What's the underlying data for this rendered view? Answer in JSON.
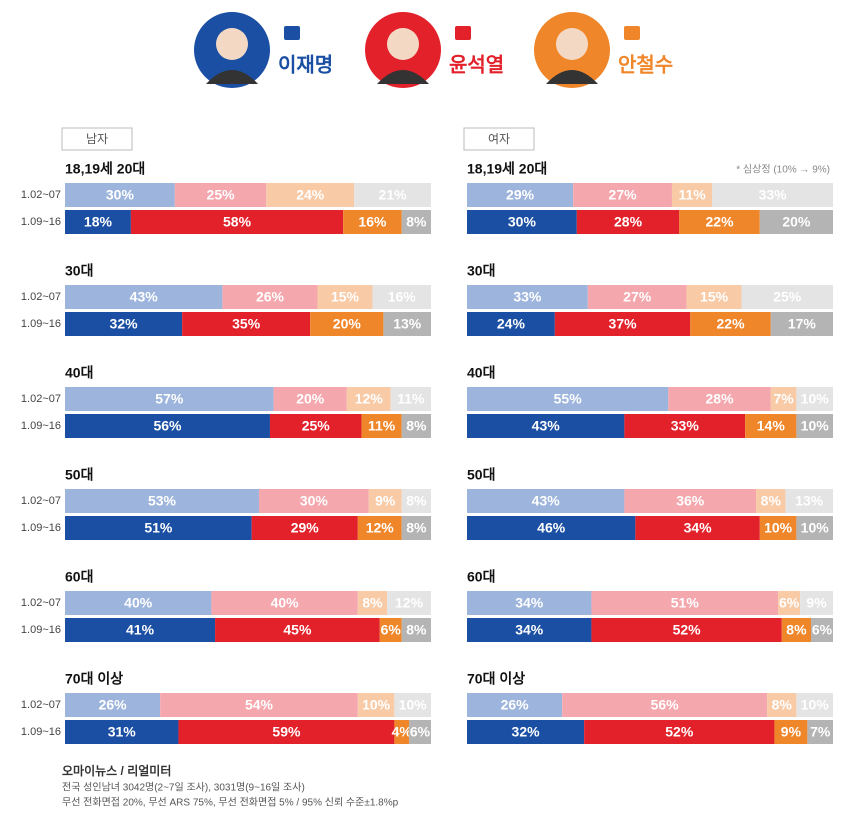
{
  "legend": [
    {
      "name": "이재명",
      "color": "#1a4fa3"
    },
    {
      "name": "윤석열",
      "color": "#e3212b"
    },
    {
      "name": "안철수",
      "color": "#f0862a"
    }
  ],
  "note": "* 심상정 (10% → 9%)",
  "source": {
    "title": "오마이뉴스 / 리얼미터",
    "lines": [
      "전국 성인남녀 3042명(2~7일 조사), 3031명(9~16일 조사)",
      "무선 전화면접 20%, 무선 ARS 75%, 무선 전화면접 5%  /  95% 신뢰 수준±1.8%p"
    ]
  },
  "chart_data": [
    {
      "type": "stacked-bar",
      "title": "남자",
      "categories": [
        "1.02~07",
        "1.09~16"
      ],
      "xlim": [
        0,
        100
      ],
      "row_colors": [
        [
          "#9db5dc",
          "#f4a7ad",
          "#f8caa6",
          "#e4e4e4"
        ],
        [
          "#1a4fa3",
          "#e3212b",
          "#f0862a",
          "#b4b4b4"
        ]
      ],
      "groups": [
        {
          "title": "18,19세 20대",
          "values": [
            [
              30,
              25,
              24,
              21
            ],
            [
              18,
              58,
              16,
              8
            ]
          ],
          "value_labels": [
            [
              "30%",
              "25%",
              "24%",
              "21%"
            ],
            [
              "18%",
              "58%",
              "16%",
              "8%"
            ]
          ]
        },
        {
          "title": "30대",
          "values": [
            [
              43,
              26,
              15,
              16
            ],
            [
              32,
              35,
              20,
              13
            ]
          ],
          "value_labels": [
            [
              "43%",
              "26%",
              "15%",
              "16%"
            ],
            [
              "32%",
              "35%",
              "20%",
              "13%"
            ]
          ]
        },
        {
          "title": "40대",
          "values": [
            [
              57,
              20,
              12,
              11
            ],
            [
              56,
              25,
              11,
              8
            ]
          ],
          "value_labels": [
            [
              "57%",
              "20%",
              "12%",
              "11%"
            ],
            [
              "56%",
              "25%",
              "11%",
              "8%"
            ]
          ]
        },
        {
          "title": "50대",
          "values": [
            [
              53,
              30,
              9,
              8
            ],
            [
              51,
              29,
              12,
              8
            ]
          ],
          "value_labels": [
            [
              "53%",
              "30%",
              "9%",
              "8%"
            ],
            [
              "51%",
              "29%",
              "12%",
              "8%"
            ]
          ]
        },
        {
          "title": "60대",
          "values": [
            [
              40,
              40,
              8,
              12
            ],
            [
              41,
              45,
              6,
              8
            ]
          ],
          "value_labels": [
            [
              "40%",
              "40%",
              "8%",
              "12%"
            ],
            [
              "41%",
              "45%",
              "6%",
              "8%"
            ]
          ]
        },
        {
          "title": "70대 이상",
          "values": [
            [
              26,
              54,
              10,
              10
            ],
            [
              31,
              59,
              4,
              6
            ]
          ],
          "value_labels": [
            [
              "26%",
              "54%",
              "10%",
              "10%"
            ],
            [
              "31%",
              "59%",
              "4%",
              "6%"
            ]
          ]
        }
      ]
    },
    {
      "type": "stacked-bar",
      "title": "여자",
      "xlim": [
        0,
        100
      ],
      "row_colors": [
        [
          "#9db5dc",
          "#f4a7ad",
          "#f8caa6",
          "#e4e4e4"
        ],
        [
          "#1a4fa3",
          "#e3212b",
          "#f0862a",
          "#b4b4b4"
        ]
      ],
      "groups": [
        {
          "title": "18,19세 20대",
          "values": [
            [
              29,
              27,
              11,
              33
            ],
            [
              30,
              28,
              22,
              20
            ]
          ],
          "value_labels": [
            [
              "29%",
              "27%",
              "11%",
              "33%"
            ],
            [
              "30%",
              "28%",
              "22%",
              "20%"
            ]
          ]
        },
        {
          "title": "30대",
          "values": [
            [
              33,
              27,
              15,
              25
            ],
            [
              24,
              37,
              22,
              17
            ]
          ],
          "value_labels": [
            [
              "33%",
              "27%",
              "15%",
              "25%"
            ],
            [
              "24%",
              "37%",
              "22%",
              "17%"
            ]
          ]
        },
        {
          "title": "40대",
          "values": [
            [
              55,
              28,
              7,
              10
            ],
            [
              43,
              33,
              14,
              10
            ]
          ],
          "value_labels": [
            [
              "55%",
              "28%",
              "7%",
              "10%"
            ],
            [
              "43%",
              "33%",
              "14%",
              "10%"
            ]
          ]
        },
        {
          "title": "50대",
          "values": [
            [
              43,
              36,
              8,
              13
            ],
            [
              46,
              34,
              10,
              10
            ]
          ],
          "value_labels": [
            [
              "43%",
              "36%",
              "8%",
              "13%"
            ],
            [
              "46%",
              "34%",
              "10%",
              "10%"
            ]
          ]
        },
        {
          "title": "60대",
          "values": [
            [
              34,
              51,
              6,
              9
            ],
            [
              34,
              52,
              8,
              6
            ]
          ],
          "value_labels": [
            [
              "34%",
              "51%",
              "6%",
              "9%"
            ],
            [
              "34%",
              "52%",
              "8%",
              "6%"
            ]
          ]
        },
        {
          "title": "70대 이상",
          "values": [
            [
              26,
              56,
              8,
              10
            ],
            [
              32,
              52,
              9,
              7
            ]
          ],
          "value_labels": [
            [
              "26%",
              "56%",
              "8%",
              "10%"
            ],
            [
              "32%",
              "52%",
              "9%",
              "7%"
            ]
          ]
        }
      ]
    }
  ]
}
